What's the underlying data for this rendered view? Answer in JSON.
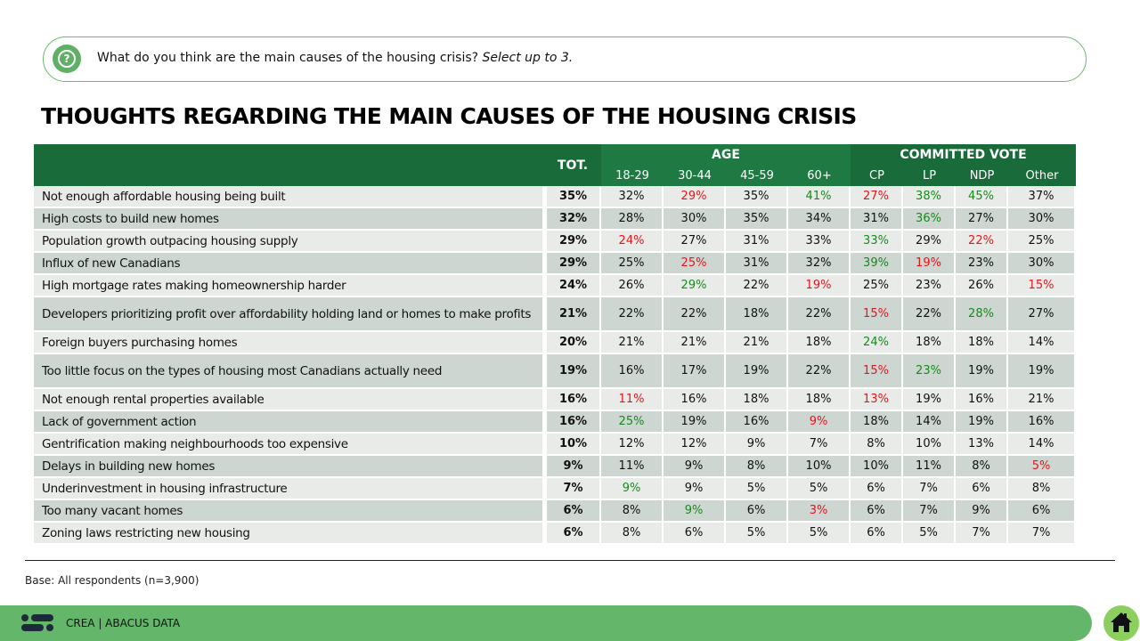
{
  "question": {
    "icon": "question-bubble-icon",
    "icon_glyph": "?",
    "text": "What do you think are the main causes of the housing crisis?",
    "note": "Select up to 3."
  },
  "title": "THOUGHTS REGARDING THE MAIN CAUSES OF THE HOUSING CRISIS",
  "chart_data": {
    "type": "table",
    "title": "THOUGHTS REGARDING THE MAIN CAUSES OF THE HOUSING CRISIS",
    "total_header": "TOT.",
    "groups": [
      {
        "name": "AGE",
        "columns": [
          "18-29",
          "30-44",
          "45-59",
          "60+"
        ]
      },
      {
        "name": "COMMITTED VOTE",
        "columns": [
          "CP",
          "LP",
          "NDP",
          "Other"
        ]
      }
    ],
    "rows": [
      {
        "label": "Not enough affordable housing being built",
        "tot": "35%",
        "values": [
          "32%",
          "29%",
          "35%",
          "41%",
          "27%",
          "38%",
          "45%",
          "37%"
        ],
        "flags": [
          "",
          "r",
          "",
          "g",
          "r",
          "g",
          "g",
          ""
        ]
      },
      {
        "label": "High costs to build new homes",
        "tot": "32%",
        "values": [
          "28%",
          "30%",
          "35%",
          "34%",
          "31%",
          "36%",
          "27%",
          "30%"
        ],
        "flags": [
          "",
          "",
          "",
          "",
          "",
          "g",
          "",
          ""
        ]
      },
      {
        "label": "Population growth outpacing housing supply",
        "tot": "29%",
        "values": [
          "24%",
          "27%",
          "31%",
          "33%",
          "33%",
          "29%",
          "22%",
          "25%"
        ],
        "flags": [
          "r",
          "",
          "",
          "",
          "g",
          "",
          "r",
          ""
        ]
      },
      {
        "label": "Influx of new Canadians",
        "tot": "29%",
        "values": [
          "25%",
          "25%",
          "31%",
          "32%",
          "39%",
          "19%",
          "23%",
          "30%"
        ],
        "flags": [
          "",
          "r",
          "",
          "",
          "g",
          "r",
          "",
          ""
        ]
      },
      {
        "label": "High mortgage rates making homeownership harder",
        "tot": "24%",
        "values": [
          "26%",
          "29%",
          "22%",
          "19%",
          "25%",
          "23%",
          "26%",
          "15%"
        ],
        "flags": [
          "",
          "g",
          "",
          "r",
          "",
          "",
          "",
          "r"
        ]
      },
      {
        "label": "Developers prioritizing profit over affordability holding land or homes to make profits",
        "tot": "21%",
        "values": [
          "22%",
          "22%",
          "18%",
          "22%",
          "15%",
          "22%",
          "28%",
          "27%"
        ],
        "flags": [
          "",
          "",
          "",
          "",
          "r",
          "",
          "g",
          ""
        ],
        "tall": true
      },
      {
        "label": "Foreign buyers purchasing homes",
        "tot": "20%",
        "values": [
          "21%",
          "21%",
          "21%",
          "18%",
          "24%",
          "18%",
          "18%",
          "14%"
        ],
        "flags": [
          "",
          "",
          "",
          "",
          "g",
          "",
          "",
          ""
        ]
      },
      {
        "label": "Too little focus on the types of housing most Canadians actually need",
        "tot": "19%",
        "values": [
          "16%",
          "17%",
          "19%",
          "22%",
          "15%",
          "23%",
          "19%",
          "19%"
        ],
        "flags": [
          "",
          "",
          "",
          "",
          "r",
          "g",
          "",
          ""
        ],
        "tall": true
      },
      {
        "label": "Not enough rental properties available",
        "tot": "16%",
        "values": [
          "11%",
          "16%",
          "18%",
          "18%",
          "13%",
          "19%",
          "16%",
          "21%"
        ],
        "flags": [
          "r",
          "",
          "",
          "",
          "r",
          "",
          "",
          ""
        ]
      },
      {
        "label": "Lack of government action",
        "tot": "16%",
        "values": [
          "25%",
          "19%",
          "16%",
          "9%",
          "18%",
          "14%",
          "19%",
          "16%"
        ],
        "flags": [
          "g",
          "",
          "",
          "r",
          "",
          "",
          "",
          ""
        ]
      },
      {
        "label": "Gentrification making neighbourhoods too expensive",
        "tot": "10%",
        "values": [
          "12%",
          "12%",
          "9%",
          "7%",
          "8%",
          "10%",
          "13%",
          "14%"
        ],
        "flags": [
          "",
          "",
          "",
          "",
          "",
          "",
          "",
          ""
        ]
      },
      {
        "label": "Delays in building new homes",
        "tot": "9%",
        "values": [
          "11%",
          "9%",
          "8%",
          "10%",
          "10%",
          "11%",
          "8%",
          "5%"
        ],
        "flags": [
          "",
          "",
          "",
          "",
          "",
          "",
          "",
          "r"
        ]
      },
      {
        "label": "Underinvestment in housing infrastructure",
        "tot": "7%",
        "values": [
          "9%",
          "9%",
          "5%",
          "5%",
          "6%",
          "7%",
          "6%",
          "8%"
        ],
        "flags": [
          "g",
          "",
          "",
          "",
          "",
          "",
          "",
          ""
        ]
      },
      {
        "label": "Too many vacant homes",
        "tot": "6%",
        "values": [
          "8%",
          "9%",
          "6%",
          "3%",
          "6%",
          "7%",
          "9%",
          "6%"
        ],
        "flags": [
          "",
          "g",
          "",
          "r",
          "",
          "",
          "",
          ""
        ]
      },
      {
        "label": "Zoning laws restricting new housing",
        "tot": "6%",
        "values": [
          "8%",
          "6%",
          "5%",
          "5%",
          "6%",
          "5%",
          "7%",
          "7%"
        ],
        "flags": [
          "",
          "",
          "",
          "",
          "",
          "",
          "",
          ""
        ]
      }
    ],
    "colors": {
      "header": "#1a6b3a",
      "significant_high": "#178a1e",
      "significant_low": "#e8141c",
      "row_light": "#e8ebe8",
      "row_dark": "#cdd6d0"
    }
  },
  "base_note": "Base: All respondents (n=3,900)",
  "footer": {
    "logo": "abacus-logo-icon",
    "text": "CREA  |  ABACUS DATA",
    "home_icon": "home-icon"
  }
}
